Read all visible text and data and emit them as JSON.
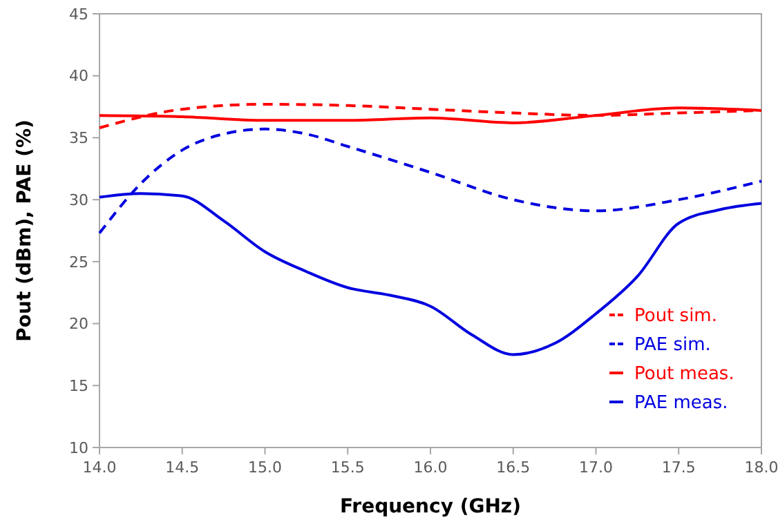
{
  "chart_data": {
    "type": "line",
    "xlabel": "Frequency  (GHz)",
    "ylabel": "Pout (dBm), PAE (%)",
    "xlim": [
      14,
      18
    ],
    "xticks": [
      {
        "value": 14,
        "label": "14.0"
      },
      {
        "value": 14.5,
        "label": "14.5"
      },
      {
        "value": 15,
        "label": "15.0"
      },
      {
        "value": 15.5,
        "label": "15.5"
      },
      {
        "value": 16,
        "label": "16.0"
      },
      {
        "value": 16.5,
        "label": "16.5"
      },
      {
        "value": 17,
        "label": "17.0"
      },
      {
        "value": 17.5,
        "label": "17.5"
      },
      {
        "value": 18,
        "label": "18.0"
      }
    ],
    "ylim": [
      10,
      45
    ],
    "yticks": [
      10,
      15,
      20,
      25,
      30,
      35,
      40,
      45
    ],
    "grid": false,
    "legend": "bottom right",
    "marker": "none",
    "series": [
      {
        "name": "Pout sim.",
        "color": "#ff0000",
        "line_style": "dashed",
        "x": [
          14,
          14.5,
          15,
          15.5,
          16,
          16.5,
          17,
          17.5,
          18
        ],
        "values": [
          35.8,
          37.3,
          37.7,
          37.6,
          37.3,
          37.0,
          36.8,
          37.0,
          37.2
        ]
      },
      {
        "name": "PAE sim.",
        "color": "#0000e0",
        "line_style": "dashed",
        "x": [
          14,
          14.25,
          14.5,
          14.75,
          15,
          15.25,
          15.5,
          16,
          16.5,
          17,
          17.5,
          18
        ],
        "values": [
          27.3,
          31.3,
          34.0,
          35.3,
          35.7,
          35.3,
          34.3,
          32.2,
          30.0,
          29.1,
          30.0,
          31.5
        ]
      },
      {
        "name": "Pout meas.",
        "color": "#ff0000",
        "line_style": "solid",
        "x": [
          14,
          14.5,
          15,
          15.5,
          16,
          16.5,
          17,
          17.5,
          18
        ],
        "values": [
          36.8,
          36.7,
          36.4,
          36.4,
          36.6,
          36.2,
          36.8,
          37.4,
          37.2
        ]
      },
      {
        "name": "PAE meas.",
        "color": "#0000e0",
        "line_style": "solid",
        "x": [
          14,
          14.25,
          14.5,
          14.75,
          15,
          15.25,
          15.5,
          15.75,
          16,
          16.25,
          16.5,
          16.75,
          17,
          17.25,
          17.5,
          17.75,
          18
        ],
        "values": [
          30.2,
          30.5,
          30.3,
          28.3,
          25.8,
          24.2,
          22.9,
          22.3,
          21.4,
          19.1,
          17.5,
          18.4,
          20.8,
          23.8,
          28.1,
          29.2,
          29.7
        ]
      }
    ]
  }
}
